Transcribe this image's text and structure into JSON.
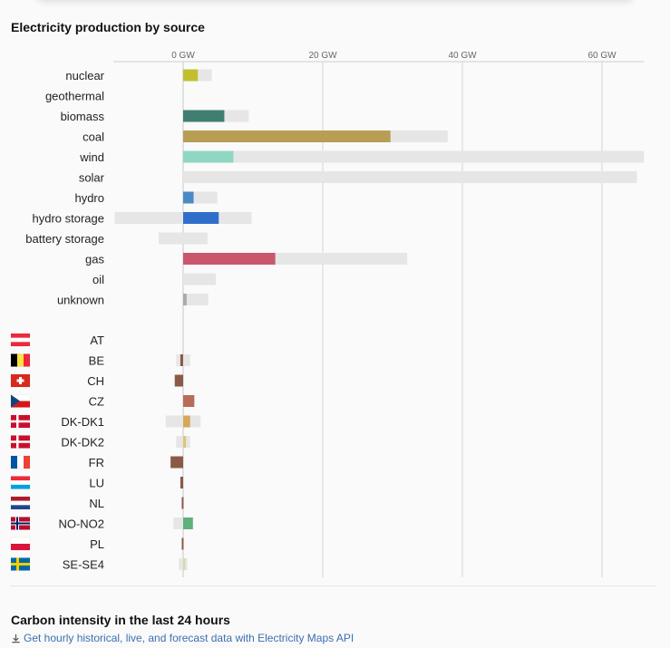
{
  "header": {
    "title": "Electricity production by source"
  },
  "chart_data": {
    "type": "bar",
    "orientation": "horizontal",
    "xlim": [
      -10,
      66
    ],
    "xticks": [
      {
        "value": 0,
        "label": "0 GW"
      },
      {
        "value": 20,
        "label": "20 GW"
      },
      {
        "value": 40,
        "label": "40 GW"
      },
      {
        "value": 60,
        "label": "60 GW"
      }
    ],
    "sources": [
      {
        "name": "nuclear",
        "value": 2.1,
        "capacity_min": 0,
        "capacity_max": 4.1,
        "color": "#c1bf2e"
      },
      {
        "name": "geothermal",
        "value": 0,
        "capacity_min": 0,
        "capacity_max": 0,
        "color": "#c9a06b"
      },
      {
        "name": "biomass",
        "value": 5.9,
        "capacity_min": 0,
        "capacity_max": 9.4,
        "color": "#3f7f71"
      },
      {
        "name": "coal",
        "value": 29.7,
        "capacity_min": 0,
        "capacity_max": 37.9,
        "color": "#b89d55"
      },
      {
        "name": "wind",
        "value": 7.2,
        "capacity_min": 0,
        "capacity_max": 66,
        "color": "#8fd6c3"
      },
      {
        "name": "solar",
        "value": 0,
        "capacity_min": 0,
        "capacity_max": 65,
        "color": "#f5c542"
      },
      {
        "name": "hydro",
        "value": 1.5,
        "capacity_min": 0,
        "capacity_max": 4.9,
        "color": "#4c89c7"
      },
      {
        "name": "hydro storage",
        "value": 5.1,
        "capacity_min": -9.8,
        "capacity_max": 9.8,
        "color": "#2f6fcb"
      },
      {
        "name": "battery storage",
        "value": 0,
        "capacity_min": -3.5,
        "capacity_max": 3.5,
        "color": "#a8b7c8"
      },
      {
        "name": "gas",
        "value": 13.2,
        "capacity_min": 0,
        "capacity_max": 32.1,
        "color": "#c9586d"
      },
      {
        "name": "oil",
        "value": 0,
        "capacity_min": 0,
        "capacity_max": 4.7,
        "color": "#8a6b55"
      },
      {
        "name": "unknown",
        "value": 0.5,
        "capacity_min": 0,
        "capacity_max": 3.6,
        "color": "#aaaaaa"
      }
    ],
    "exchanges": [
      {
        "name": "AT",
        "flag": "at",
        "value": 0,
        "capacity_min": 0,
        "capacity_max": 0,
        "color": "#8b5a47"
      },
      {
        "name": "BE",
        "flag": "be",
        "value": -0.4,
        "capacity_min": -1.0,
        "capacity_max": 1.0,
        "color": "#8b5a47"
      },
      {
        "name": "CH",
        "flag": "ch",
        "value": -1.2,
        "capacity_min": -1.2,
        "capacity_max": 0,
        "color": "#8b5a47"
      },
      {
        "name": "CZ",
        "flag": "cz",
        "value": 1.6,
        "capacity_min": 0,
        "capacity_max": 1.6,
        "color": "#b86b58"
      },
      {
        "name": "DK-DK1",
        "flag": "dk",
        "value": 1.0,
        "capacity_min": -2.5,
        "capacity_max": 2.5,
        "color": "#d4a85a"
      },
      {
        "name": "DK-DK2",
        "flag": "dk",
        "value": 0.4,
        "capacity_min": -1.0,
        "capacity_max": 1.0,
        "color": "#e0c27a"
      },
      {
        "name": "FR",
        "flag": "fr",
        "value": -1.8,
        "capacity_min": -1.8,
        "capacity_max": 0,
        "color": "#8b5a47"
      },
      {
        "name": "LU",
        "flag": "lu",
        "value": -0.4,
        "capacity_min": -0.4,
        "capacity_max": 0,
        "color": "#8b5a47"
      },
      {
        "name": "NL",
        "flag": "nl",
        "value": -0.2,
        "capacity_min": -0.2,
        "capacity_max": 0,
        "color": "#8b5a47"
      },
      {
        "name": "NO-NO2",
        "flag": "no",
        "value": 1.4,
        "capacity_min": -1.4,
        "capacity_max": 1.4,
        "color": "#5fb07a"
      },
      {
        "name": "PL",
        "flag": "pl",
        "value": -0.2,
        "capacity_min": -0.2,
        "capacity_max": 0,
        "color": "#8b5a47"
      },
      {
        "name": "SE-SE4",
        "flag": "se",
        "value": 0.3,
        "capacity_min": -0.6,
        "capacity_max": 0.6,
        "color": "#d8d8a8"
      }
    ]
  },
  "footer": {
    "title": "Carbon intensity in the last 24 hours",
    "link_label": "Get hourly historical, live, and forecast data with Electricity Maps API"
  }
}
